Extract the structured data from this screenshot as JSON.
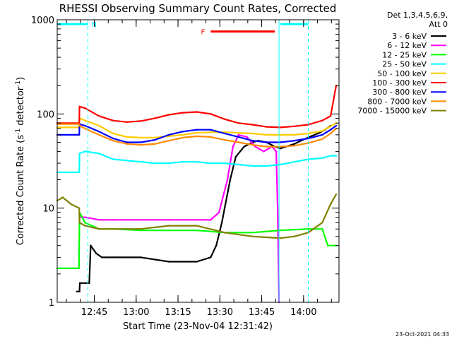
{
  "chart_data": {
    "type": "line",
    "title": "RHESSI Observing Summary Count Rates, Corrected",
    "xlabel": "Start Time (23-Nov-04 12:31:42)",
    "ylabel_main": "Corrected Count Rate (s",
    "ylabel_sup1": "-1",
    "ylabel_mid": " detector",
    "ylabel_sup2": "-1",
    "ylabel_end": ")",
    "yscale": "log",
    "ylim": [
      1,
      1000
    ],
    "xlim_min": [
      0,
      101
    ],
    "x_ticks": [
      {
        "label": "12:45",
        "min": 13.3
      },
      {
        "label": "13:00",
        "min": 28.3
      },
      {
        "label": "13:15",
        "min": 43.3
      },
      {
        "label": "13:30",
        "min": 58.3
      },
      {
        "label": "13:45",
        "min": 73.3
      },
      {
        "label": "14:00",
        "min": 88.3
      }
    ],
    "y_ticks": [
      {
        "label": "1",
        "value": 1
      },
      {
        "label": "10",
        "value": 10
      },
      {
        "label": "100",
        "value": 100
      },
      {
        "label": "1000",
        "value": 1000
      }
    ],
    "legend_header": [
      "Det 1,3,4,5,6,9,",
      "Att 0"
    ],
    "legend_position": "right, outside plot",
    "series": [
      {
        "name": "3 - 6 keV",
        "color": "#000000",
        "x": [
          7,
          8,
          8.1,
          11.5,
          12,
          14,
          16,
          20,
          30,
          40,
          50,
          55,
          57,
          59,
          62,
          64,
          67,
          70,
          72,
          75,
          78,
          80,
          82,
          85,
          88,
          91,
          94,
          96,
          98
        ],
        "y": [
          1.3,
          1.3,
          1.6,
          1.6,
          4,
          3.3,
          3,
          3,
          3,
          2.7,
          2.7,
          3,
          4,
          7,
          20,
          35,
          45,
          50,
          52,
          50,
          45,
          43,
          45,
          48,
          53,
          58,
          63,
          68,
          75
        ]
      },
      {
        "name": "6 - 12 keV",
        "color": "#ff00ff",
        "x": [
          8.2,
          10,
          15,
          20,
          30,
          40,
          50,
          55,
          58,
          61,
          63,
          65,
          68,
          71,
          74,
          77,
          78.5,
          79,
          79.5
        ],
        "y": [
          8,
          8,
          7.5,
          7.5,
          7.5,
          7.5,
          7.5,
          7.5,
          9,
          20,
          45,
          60,
          57,
          45,
          40,
          45,
          40,
          10,
          0.9
        ]
      },
      {
        "name": "12 - 25 keV",
        "color": "#00ff00",
        "x": [
          0,
          7.8,
          8,
          10,
          15,
          20,
          30,
          40,
          50,
          60,
          70,
          80,
          90,
          95,
          97,
          100
        ],
        "y": [
          2.3,
          2.3,
          9,
          7,
          6,
          6,
          5.8,
          5.8,
          5.8,
          5.5,
          5.5,
          5.8,
          6,
          6,
          4,
          4
        ]
      },
      {
        "name": "25 - 50 keV",
        "color": "#00ffff",
        "x": [
          0,
          7.9,
          8,
          10,
          15,
          20,
          25,
          30,
          35,
          40,
          45,
          50,
          55,
          60,
          65,
          70,
          75,
          80,
          85,
          90,
          95,
          98,
          100
        ],
        "y": [
          24,
          24,
          38,
          40,
          38,
          33,
          32,
          31,
          30,
          30,
          31,
          31,
          30,
          30,
          29,
          28,
          28,
          29,
          31,
          33,
          34,
          36,
          36
        ]
      },
      {
        "name": "50 - 100 keV",
        "color": "#ffcc00",
        "x": [
          0,
          7.9,
          8,
          10,
          15,
          20,
          25,
          30,
          35,
          40,
          45,
          50,
          55,
          60,
          65,
          70,
          75,
          80,
          85,
          90,
          95,
          98,
          100
        ],
        "y": [
          72,
          72,
          90,
          85,
          75,
          62,
          57,
          56,
          56,
          58,
          60,
          63,
          64,
          64,
          63,
          62,
          60,
          60,
          60,
          62,
          66,
          74,
          80
        ]
      },
      {
        "name": "100 - 300 keV",
        "color": "#ff0000",
        "x": [
          0,
          7.9,
          8,
          10,
          15,
          20,
          25,
          30,
          35,
          40,
          45,
          50,
          55,
          60,
          65,
          70,
          75,
          80,
          85,
          90,
          95,
          98,
          100
        ],
        "y": [
          80,
          80,
          120,
          115,
          95,
          85,
          82,
          84,
          90,
          98,
          103,
          105,
          100,
          88,
          80,
          77,
          73,
          72,
          74,
          77,
          85,
          95,
          200
        ]
      },
      {
        "name": "300 - 800 keV",
        "color": "#0000ff",
        "x": [
          0,
          7.9,
          8,
          10,
          15,
          20,
          25,
          30,
          35,
          40,
          45,
          50,
          55,
          60,
          65,
          70,
          75,
          80,
          85,
          90,
          95,
          98,
          100
        ],
        "y": [
          60,
          60,
          78,
          75,
          65,
          55,
          50,
          50,
          53,
          60,
          65,
          68,
          68,
          62,
          57,
          52,
          50,
          50,
          52,
          55,
          60,
          68,
          75
        ]
      },
      {
        "name": "800 - 7000 keV",
        "color": "#ff8c00",
        "x": [
          0,
          7.9,
          8,
          10,
          15,
          20,
          25,
          30,
          35,
          40,
          45,
          50,
          55,
          60,
          65,
          70,
          75,
          80,
          85,
          90,
          95,
          98,
          100
        ],
        "y": [
          78,
          78,
          75,
          70,
          60,
          52,
          48,
          47,
          48,
          52,
          56,
          58,
          57,
          53,
          50,
          47,
          45,
          45,
          46,
          49,
          54,
          62,
          70
        ]
      },
      {
        "name": "7000 - 15000 keV",
        "color": "#808000",
        "x": [
          0,
          2,
          5,
          7.9,
          8,
          10,
          15,
          20,
          30,
          40,
          50,
          60,
          70,
          80,
          85,
          90,
          95,
          98,
          100
        ],
        "y": [
          12,
          13,
          11,
          10,
          7,
          6.5,
          6,
          6,
          6,
          6.5,
          6.5,
          5.5,
          5,
          4.8,
          5,
          5.5,
          7,
          11,
          14
        ]
      }
    ],
    "annotations": [
      {
        "label": "N",
        "color": "#00ffff",
        "x_from": 0,
        "x_to": 11,
        "value": 900
      },
      {
        "label": "F",
        "color": "#ff0000",
        "x_from": 55,
        "x_to": 78,
        "value": 750
      },
      {
        "label": "",
        "color": "#00ffff",
        "x_from": 80,
        "x_to": 90,
        "value": 900
      }
    ],
    "vertical_markers": [
      {
        "min": 0,
        "style": "solid",
        "color": "#00ffff"
      },
      {
        "min": 11,
        "style": "dashed",
        "color": "#00ffff"
      },
      {
        "min": 79.5,
        "style": "solid",
        "color": "#00ffff"
      },
      {
        "min": 90,
        "style": "dashed",
        "color": "#00ffff"
      }
    ]
  },
  "footer_timestamp": "23-Oct-2021 04:33"
}
